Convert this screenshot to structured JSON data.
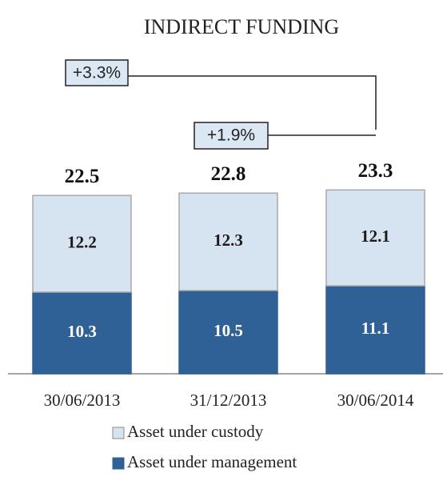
{
  "chart_data": {
    "type": "bar",
    "stacked": true,
    "title": "INDIRECT FUNDING",
    "categories": [
      "30/06/2013",
      "31/12/2013",
      "30/06/2014"
    ],
    "series": [
      {
        "name": "Asset under management",
        "color": "#2f6096",
        "values": [
          10.3,
          10.5,
          11.1
        ]
      },
      {
        "name": "Asset under custody",
        "color": "#d6e3f1",
        "values": [
          12.2,
          12.3,
          12.1
        ]
      }
    ],
    "totals": [
      22.5,
      22.8,
      23.3
    ],
    "annotations": [
      "+3.3%",
      "+1.9%"
    ]
  }
}
